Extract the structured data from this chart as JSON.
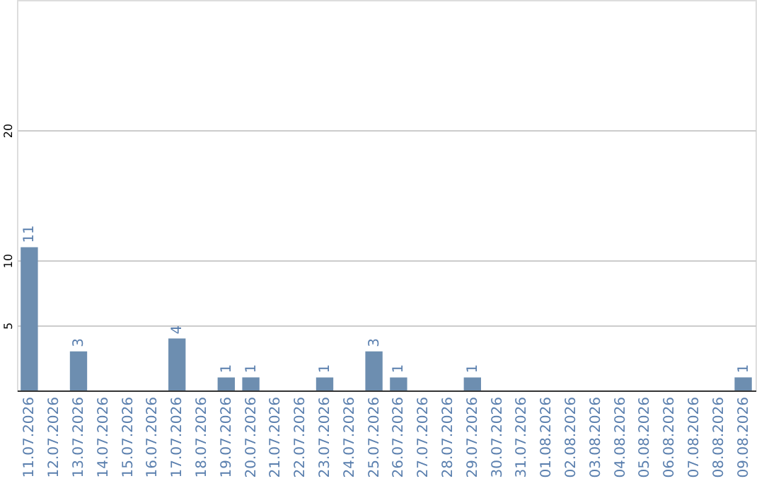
{
  "chart_data": {
    "type": "bar",
    "categories": [
      "11.07.2026",
      "12.07.2026",
      "13.07.2026",
      "14.07.2026",
      "15.07.2026",
      "16.07.2026",
      "17.07.2026",
      "18.07.2026",
      "19.07.2026",
      "20.07.2026",
      "21.07.2026",
      "22.07.2026",
      "23.07.2026",
      "24.07.2026",
      "25.07.2026",
      "26.07.2026",
      "27.07.2026",
      "28.07.2026",
      "29.07.2026",
      "30.07.2026",
      "31.07.2026",
      "01.08.2026",
      "02.08.2026",
      "03.08.2026",
      "04.08.2026",
      "05.08.2026",
      "06.08.2026",
      "07.08.2026",
      "08.08.2026",
      "09.08.2026"
    ],
    "values": [
      11,
      0,
      3,
      0,
      0,
      0,
      4,
      0,
      1,
      1,
      0,
      0,
      1,
      0,
      3,
      1,
      0,
      0,
      1,
      0,
      0,
      0,
      0,
      0,
      0,
      0,
      0,
      0,
      0,
      1
    ],
    "value_labels": [
      "11",
      null,
      "3",
      null,
      null,
      null,
      "4",
      null,
      "1",
      "1",
      null,
      null,
      "1",
      null,
      "3",
      "1",
      null,
      null,
      "1",
      null,
      null,
      null,
      null,
      null,
      null,
      null,
      null,
      null,
      null,
      "1"
    ],
    "color": "#6d8eb0",
    "ylim": [
      0,
      30
    ],
    "yticks": [
      5,
      10,
      20
    ],
    "grid": "y"
  }
}
